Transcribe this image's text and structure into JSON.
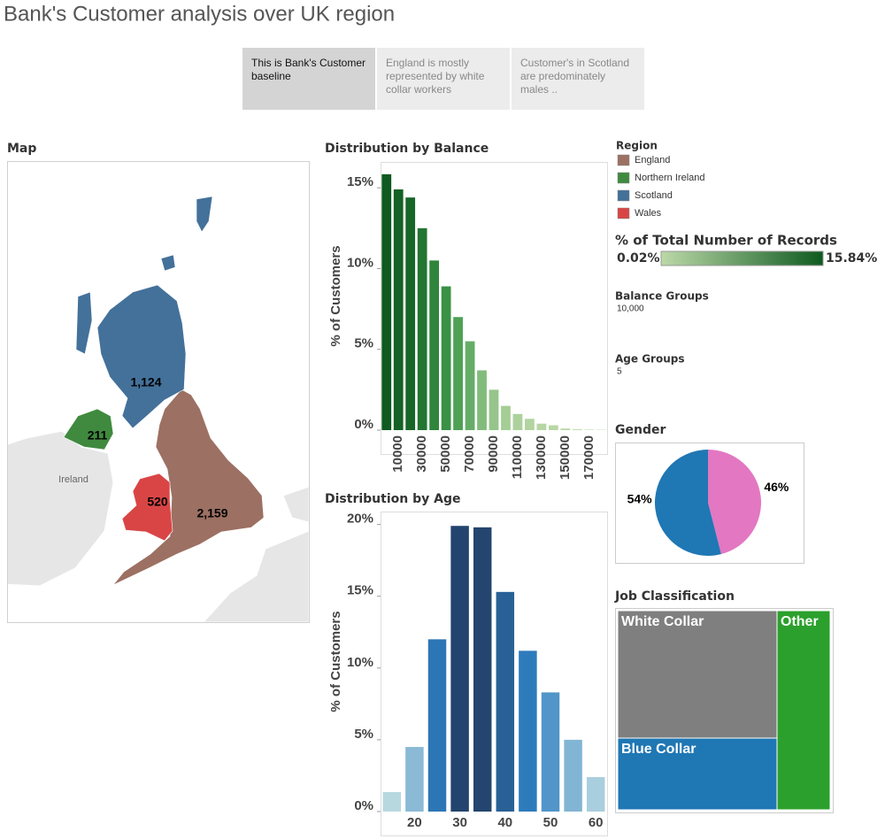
{
  "header": {
    "title": "Bank's Customer analysis over UK region"
  },
  "story_points": [
    {
      "text": "This is Bank's Customer baseline",
      "active": true
    },
    {
      "text": "England is mostly represented by white collar workers",
      "active": false
    },
    {
      "text": "Customer's in Scotland are predominately males ..",
      "active": false
    }
  ],
  "map": {
    "title": "Map",
    "places": [
      "Ireland"
    ],
    "legend_title": "Region",
    "regions": [
      "England",
      "Northern Ireland",
      "Scotland",
      "Wales"
    ],
    "colors": [
      "#9c7063",
      "#3f8a3e",
      "#43719a",
      "#d94545"
    ],
    "values": [
      2159,
      211,
      1124,
      520
    ],
    "value_labels": [
      "2,159",
      "211",
      "1,124",
      "520"
    ]
  },
  "color_legend": {
    "title": "% of Total Number of Records",
    "min": 0.02,
    "max": 15.84,
    "min_label": "0.02%",
    "max_label": "15.84%",
    "colors": [
      "#bcd9a8",
      "#0e5a20"
    ]
  },
  "parameters": [
    {
      "name": "Balance Groups",
      "value": "10,000"
    },
    {
      "name": "Age Groups",
      "value": "5"
    }
  ],
  "chart_data": [
    {
      "type": "bar",
      "title": "Distribution by Balance",
      "y_label": "% of Customers",
      "categories": [
        null,
        10000,
        null,
        30000,
        null,
        50000,
        null,
        70000,
        null,
        90000,
        null,
        110000,
        null,
        130000,
        null,
        150000,
        null,
        170000,
        null
      ],
      "values": [
        15.84,
        14.9,
        14.4,
        12.5,
        10.5,
        8.9,
        7.0,
        5.5,
        3.7,
        2.5,
        1.5,
        1.0,
        0.7,
        0.4,
        0.3,
        0.1,
        0.05,
        0.03,
        0.02
      ],
      "color_range": [
        "#bcd9a8",
        "#3f9a4a",
        "#0e5a20"
      ],
      "ylim": [
        0,
        16.6
      ],
      "yticks": [
        {
          "value": 0,
          "label": "0%"
        },
        {
          "value": 5,
          "label": "5%"
        },
        {
          "value": 10,
          "label": "10%"
        },
        {
          "value": 15,
          "label": "15%"
        }
      ],
      "grid": false
    },
    {
      "type": "bar",
      "title": "Distribution by Age",
      "y_label": "% of Customers",
      "categories": [
        null,
        20,
        null,
        30,
        null,
        40,
        null,
        50,
        null,
        60
      ],
      "values": [
        1.36,
        4.5,
        12.0,
        19.9,
        19.8,
        15.3,
        11.2,
        8.3,
        5.0,
        2.4
      ],
      "color_range": [
        "#b8d8e0",
        "#2f7fc1",
        "#23446e"
      ],
      "ylim": [
        0,
        20.9
      ],
      "yticks": [
        {
          "value": 0,
          "label": "0%"
        },
        {
          "value": 5,
          "label": "5%"
        },
        {
          "value": 10,
          "label": "10%"
        },
        {
          "value": 15,
          "label": "15%"
        },
        {
          "value": 20,
          "label": "20%"
        }
      ],
      "grid": false
    },
    {
      "type": "pie",
      "title": "Gender",
      "values": [
        46,
        54
      ],
      "value_labels": [
        "46%",
        "54%"
      ],
      "colors": [
        "#e377c2",
        "#1f77b4"
      ]
    },
    {
      "type": "treemap",
      "title": "Job Classification",
      "categories": [
        "White Collar",
        "Blue Collar",
        "Other"
      ],
      "values": [
        48,
        27,
        25
      ],
      "colors": [
        "#7f7f7f",
        "#1f77b4",
        "#2ca02c"
      ]
    }
  ]
}
